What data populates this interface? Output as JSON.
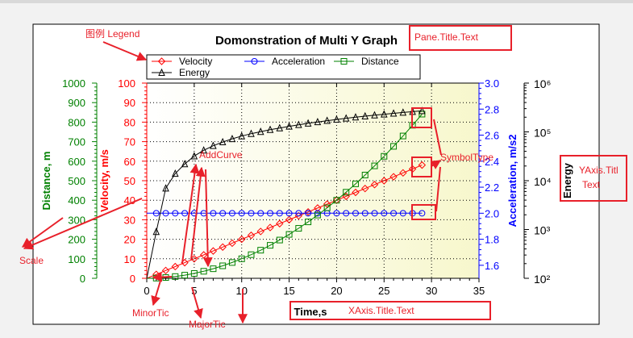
{
  "chart_data": {
    "type": "line",
    "title": "Domonstration of Multi Y Graph",
    "xlabel": "Time,s",
    "xlim": [
      0,
      35
    ],
    "x_ticks": [
      "0",
      "5",
      "10",
      "15",
      "20",
      "25",
      "30",
      "35"
    ],
    "grid": true,
    "legend_position": "top-left",
    "y_axes": [
      {
        "id": "distance",
        "label": "Distance, m",
        "side": "left",
        "color": "#008000",
        "ylim": [
          0,
          1000
        ],
        "ticks": [
          "0",
          "100",
          "200",
          "300",
          "400",
          "500",
          "600",
          "700",
          "800",
          "900",
          "1000"
        ]
      },
      {
        "id": "velocity",
        "label": "Velocity, m/s",
        "side": "left",
        "color": "#ff0000",
        "ylim": [
          0,
          100
        ],
        "ticks": [
          "0",
          "10",
          "20",
          "30",
          "40",
          "50",
          "60",
          "70",
          "80",
          "90",
          "100"
        ]
      },
      {
        "id": "acceleration",
        "label": "Acceleration, m/s2",
        "side": "right",
        "color": "#0000ff",
        "ylim": [
          1.5,
          3.0
        ],
        "ticks": [
          "1.6",
          "1.8",
          "2.0",
          "2.2",
          "2.4",
          "2.6",
          "2.8",
          "3.0"
        ]
      },
      {
        "id": "energy",
        "label": "Energy",
        "side": "right",
        "color": "#000000",
        "scale": "log",
        "ylim": [
          100,
          1000000
        ],
        "ticks": [
          "10²",
          "10³",
          "10⁴",
          "10⁵",
          "10⁶"
        ]
      }
    ],
    "x": [
      1,
      2,
      3,
      4,
      5,
      6,
      7,
      8,
      9,
      10,
      11,
      12,
      13,
      14,
      15,
      16,
      17,
      18,
      19,
      20,
      21,
      22,
      23,
      24,
      25,
      26,
      27,
      28,
      29
    ],
    "series": [
      {
        "name": "Velocity",
        "axis": "velocity",
        "color": "#ff0000",
        "marker": "diamond",
        "values": [
          2,
          4,
          6,
          8,
          10,
          12,
          14,
          16,
          18,
          20,
          22,
          24,
          26,
          28,
          30,
          32,
          34,
          36,
          38,
          40,
          42,
          44,
          46,
          48,
          50,
          52,
          54,
          56,
          58
        ]
      },
      {
        "name": "Acceleration",
        "axis": "acceleration",
        "color": "#0000ff",
        "marker": "circle",
        "values": [
          2,
          2,
          2,
          2,
          2,
          2,
          2,
          2,
          2,
          2,
          2,
          2,
          2,
          2,
          2,
          2,
          2,
          2,
          2,
          2,
          2,
          2,
          2,
          2,
          2,
          2,
          2,
          2,
          2
        ]
      },
      {
        "name": "Distance",
        "axis": "distance",
        "color": "#008000",
        "marker": "square",
        "values": [
          1,
          4,
          9,
          16,
          25,
          36,
          49,
          64,
          81,
          100,
          121,
          144,
          169,
          196,
          225,
          256,
          289,
          324,
          361,
          400,
          441,
          484,
          529,
          576,
          625,
          676,
          729,
          784,
          841
        ]
      },
      {
        "name": "Energy",
        "axis": "energy",
        "color": "#000000",
        "marker": "triangle",
        "values": [
          900,
          7000,
          14000,
          22000,
          32000,
          42000,
          52000,
          62000,
          72000,
          82000,
          92000,
          101000,
          111000,
          120000,
          130000,
          140000,
          150000,
          160000,
          170000,
          180000,
          190000,
          200000,
          210000,
          220000,
          230000,
          240000,
          250000,
          260000,
          270000
        ]
      }
    ]
  },
  "annotations": {
    "legend_note": "图例 Legend",
    "title_note": "Pane.Title.Text",
    "add_curve": "AddCurve",
    "symbol_type": "SymbolType",
    "scale": "Scale",
    "minor_tic": "MinorTic",
    "major_tic": "MajorTic",
    "xaxis_title_note": "XAxis.Title.Text",
    "yaxis_title_note_1": "YAxis.Titl",
    "yaxis_title_note_2": "Text"
  },
  "colors": {
    "annotation": "#e8202a",
    "plot_bg_start": "#ffffff",
    "plot_bg_end": "#f7f7cc"
  }
}
